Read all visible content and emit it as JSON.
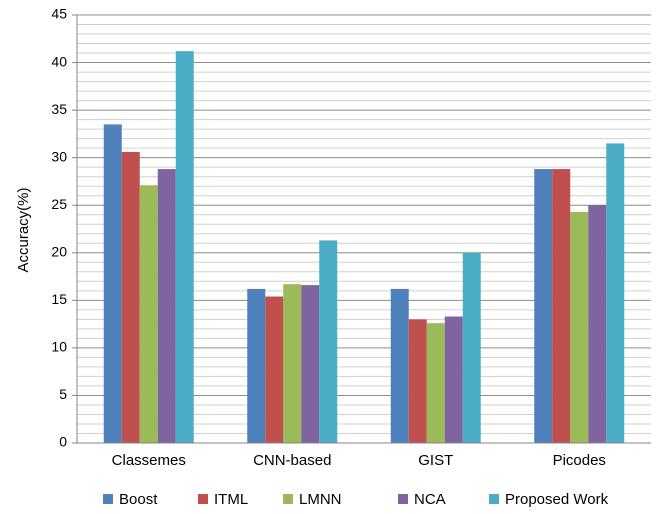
{
  "chart_data": {
    "type": "bar",
    "title": "",
    "xlabel": "",
    "ylabel": "Accuracy(%)",
    "ylim": [
      0,
      45
    ],
    "yticks": [
      0,
      5,
      10,
      15,
      20,
      25,
      30,
      35,
      40,
      45
    ],
    "minor_grid_step": 1,
    "grid": true,
    "legend_position": "bottom",
    "categories": [
      "Classemes",
      "CNN-based",
      "GIST",
      "Picodes"
    ],
    "series": [
      {
        "name": "Boost",
        "color": "#4f81bd",
        "values": [
          33.5,
          16.2,
          16.2,
          28.8
        ]
      },
      {
        "name": "ITML",
        "color": "#c0504d",
        "values": [
          30.6,
          15.4,
          13.0,
          28.8
        ]
      },
      {
        "name": "LMNN",
        "color": "#9bbb59",
        "values": [
          27.1,
          16.7,
          12.6,
          24.3
        ]
      },
      {
        "name": "NCA",
        "color": "#8064a2",
        "values": [
          28.8,
          16.6,
          13.3,
          25.0
        ]
      },
      {
        "name": "Proposed Work",
        "color": "#4bacc6",
        "values": [
          41.2,
          21.3,
          20.0,
          31.5
        ]
      }
    ]
  }
}
